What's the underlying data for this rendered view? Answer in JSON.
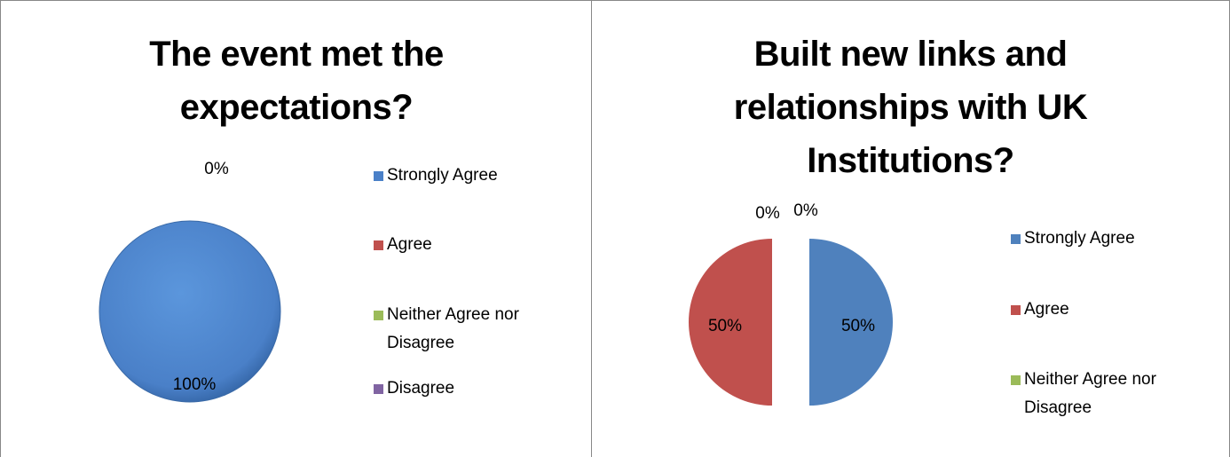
{
  "chart_data": [
    {
      "type": "pie",
      "title": "The event met the expectations?",
      "categories": [
        "Strongly Agree",
        "Agree",
        "Neither Agree nor Disagree",
        "Disagree"
      ],
      "values": [
        100,
        0,
        0,
        0
      ],
      "value_labels": [
        "100%",
        "0%",
        null,
        null
      ],
      "colors": [
        "#4a80c8",
        "#c0504d",
        "#9bbb59",
        "#8064a2"
      ],
      "legend": "right"
    },
    {
      "type": "pie",
      "title": "Built new links and relationships with UK Institutions?",
      "categories": [
        "Strongly Agree",
        "Agree",
        "Neither Agree nor Disagree",
        null
      ],
      "values": [
        50,
        50,
        0,
        0
      ],
      "value_labels": [
        "50%",
        "50%",
        "0%",
        "0%"
      ],
      "colors": [
        "#4f81bd",
        "#c0504d",
        "#9bbb59",
        "#8064a2"
      ],
      "legend": "right"
    }
  ]
}
